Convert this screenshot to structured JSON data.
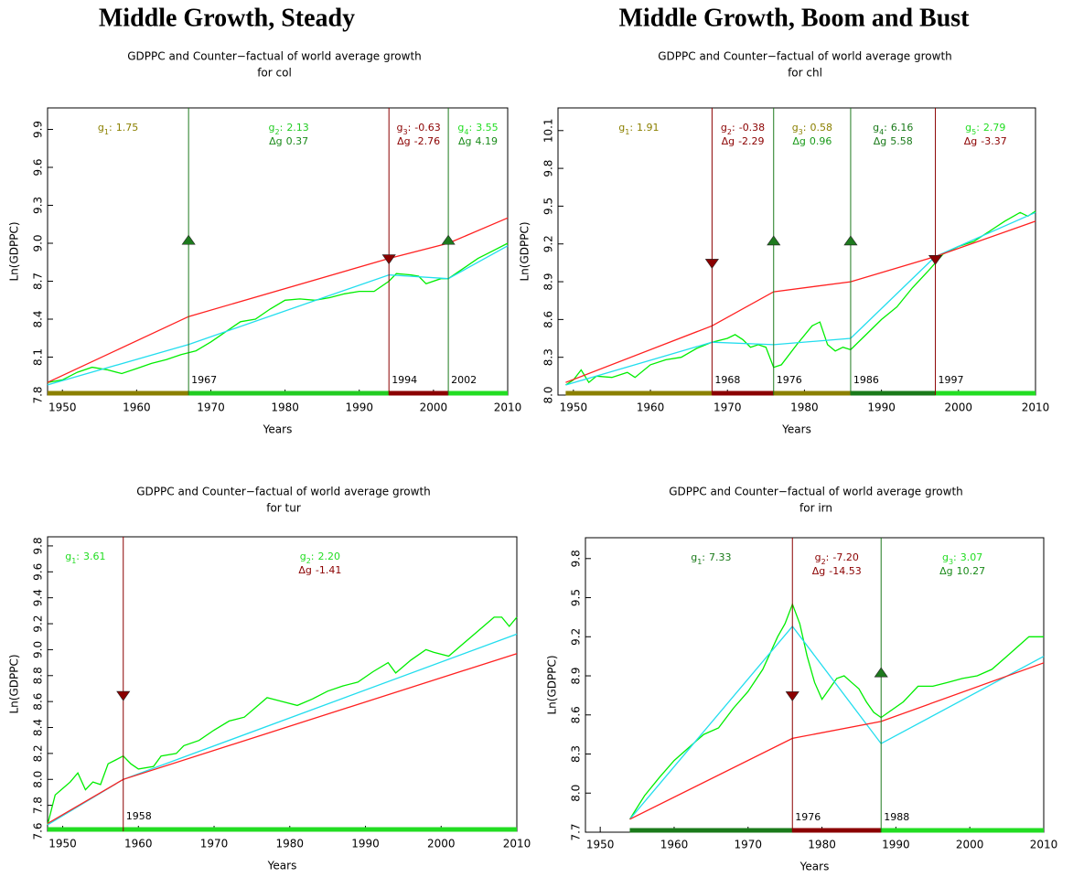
{
  "headings": [
    "Middle Growth, Steady",
    "Middle Growth, Boom and Bust"
  ],
  "chart_data": [
    {
      "type": "line",
      "title": "GDPPC and Counter−factual of world average growth",
      "subtitle": "for col",
      "xlabel": "Years",
      "ylabel": "Ln(GDPPC)",
      "xlim": [
        1948,
        2010
      ],
      "ylim": [
        7.8,
        10.07
      ],
      "xticks": [
        1950,
        1960,
        1970,
        1980,
        1990,
        2000,
        2010
      ],
      "yticks": [
        7.8,
        8.1,
        8.4,
        8.7,
        {
          "value": 9,
          "label": "9.0"
        },
        9.3,
        9.6,
        9.9
      ],
      "series": [
        {
          "color": "#00ee00",
          "x": [
            1948,
            1950,
            1952,
            1954,
            1956,
            1958,
            1960,
            1962,
            1964,
            1966,
            1968,
            1970,
            1972,
            1974,
            1976,
            1978,
            1980,
            1982,
            1984,
            1986,
            1988,
            1990,
            1992,
            1994,
            1995,
            1997,
            1998,
            1999,
            2001,
            2002,
            2004,
            2006,
            2008,
            2010
          ],
          "values": [
            7.9,
            7.92,
            7.98,
            8.02,
            8.0,
            7.97,
            8.01,
            8.05,
            8.08,
            8.12,
            8.15,
            8.22,
            8.3,
            8.38,
            8.4,
            8.48,
            8.55,
            8.56,
            8.55,
            8.57,
            8.6,
            8.62,
            8.62,
            8.7,
            8.76,
            8.75,
            8.74,
            8.68,
            8.72,
            8.72,
            8.8,
            8.88,
            8.94,
            9.0
          ]
        },
        {
          "color": "#22ddee",
          "x": [
            1948,
            1967,
            1994,
            2002,
            2010
          ],
          "values": [
            7.88,
            8.2,
            8.75,
            8.72,
            8.98
          ]
        },
        {
          "color": "#ff2020",
          "x": [
            1948,
            1967,
            1994,
            2002,
            2010
          ],
          "values": [
            7.9,
            8.42,
            8.88,
            9.0,
            9.2
          ]
        }
      ],
      "breaks": [
        {
          "x": 1967,
          "direction": "up",
          "color": "#1e7a1e",
          "level": 9.02
        },
        {
          "x": 1994,
          "direction": "down",
          "color": "#8b0000",
          "level": 8.88
        },
        {
          "x": 2002,
          "direction": "up",
          "color": "#1e7a1e",
          "level": 9.02
        }
      ],
      "regime_symbol": "g",
      "separator": ":",
      "delta_symbol": "Δg",
      "regimes": [
        {
          "index": 1,
          "g": 1.75,
          "color": "#8b8000"
        },
        {
          "index": 2,
          "g": 2.13,
          "dg": 0.37,
          "color": "#22cc22",
          "delta_color": "#1a8a1a"
        },
        {
          "index": 3,
          "g": -0.63,
          "dg": -2.76,
          "color": "#8b0000",
          "delta_color": "#8b0000"
        },
        {
          "index": 4,
          "g": 3.55,
          "dg": 4.19,
          "color": "#22dd22",
          "delta_color": "#1a8a1a"
        }
      ]
    },
    {
      "type": "line",
      "title": "GDPPC and Counter−factual of world average growth",
      "subtitle": "for chl",
      "xlabel": "Years",
      "ylabel": "Ln(GDPPC)",
      "xlim": [
        1948,
        2010
      ],
      "ylim": [
        8.0,
        10.28
      ],
      "xticks": [
        1950,
        1960,
        1970,
        1980,
        1990,
        2000,
        2010
      ],
      "yticks": [
        {
          "value": 8,
          "label": "8.0"
        },
        8.3,
        8.6,
        8.9,
        9.2,
        9.5,
        9.8,
        10.1
      ],
      "series": [
        {
          "color": "#00ee00",
          "x": [
            1949,
            1950,
            1951,
            1952,
            1953,
            1955,
            1957,
            1958,
            1960,
            1962,
            1964,
            1966,
            1968,
            1970,
            1971,
            1972,
            1973,
            1974,
            1975,
            1976,
            1977,
            1979,
            1981,
            1982,
            1983,
            1984,
            1985,
            1986,
            1988,
            1990,
            1992,
            1994,
            1996,
            1998,
            2000,
            2002,
            2004,
            2006,
            2008,
            2009,
            2010
          ],
          "values": [
            8.08,
            8.12,
            8.2,
            8.1,
            8.15,
            8.14,
            8.18,
            8.14,
            8.24,
            8.28,
            8.3,
            8.37,
            8.42,
            8.45,
            8.48,
            8.44,
            8.38,
            8.4,
            8.38,
            8.22,
            8.24,
            8.4,
            8.55,
            8.58,
            8.4,
            8.35,
            8.38,
            8.36,
            8.48,
            8.6,
            8.7,
            8.85,
            8.98,
            9.12,
            9.18,
            9.22,
            9.3,
            9.38,
            9.45,
            9.42,
            9.46
          ]
        },
        {
          "color": "#22ddee",
          "x": [
            1949,
            1968,
            1976,
            1986,
            1997,
            2010
          ],
          "values": [
            8.08,
            8.42,
            8.4,
            8.45,
            9.1,
            9.45
          ]
        },
        {
          "color": "#ff2020",
          "x": [
            1949,
            1968,
            1976,
            1986,
            1997,
            2010
          ],
          "values": [
            8.1,
            8.55,
            8.82,
            8.9,
            9.1,
            9.38
          ]
        }
      ],
      "breaks": [
        {
          "x": 1968,
          "direction": "down",
          "color": "#8b0000",
          "level": 9.05
        },
        {
          "x": 1976,
          "direction": "up",
          "color": "#1e7a1e",
          "level": 9.22
        },
        {
          "x": 1986,
          "direction": "up",
          "color": "#1e7a1e",
          "level": 9.22
        },
        {
          "x": 1997,
          "direction": "down",
          "color": "#8b0000",
          "level": 9.08
        }
      ],
      "regime_symbol": "g",
      "separator": ":",
      "delta_symbol": "Δg",
      "regimes": [
        {
          "index": 1,
          "g": 1.91,
          "color": "#8b8000"
        },
        {
          "index": 2,
          "g": -0.38,
          "dg": -2.29,
          "color": "#8b0000",
          "delta_color": "#8b0000"
        },
        {
          "index": 3,
          "g": 0.58,
          "dg": 0.96,
          "color": "#8b8000",
          "delta_color": "#1a9a1a"
        },
        {
          "index": 4,
          "g": 6.16,
          "dg": 5.58,
          "color": "#1a7a1a",
          "delta_color": "#1a7a1a"
        },
        {
          "index": 5,
          "g": 2.79,
          "dg": -3.37,
          "color": "#22dd22",
          "delta_color": "#8b0000"
        }
      ]
    },
    {
      "type": "line",
      "title": "GDPPC and Counter−factual of world average growth",
      "subtitle": "for tur",
      "xlabel": "Years",
      "ylabel": "Ln(GDPPC)",
      "xlim": [
        1948,
        2010
      ],
      "ylim": [
        7.6,
        9.87
      ],
      "xticks": [
        1950,
        1960,
        1970,
        1980,
        1990,
        2000,
        2010
      ],
      "yticks": [
        7.6,
        7.8,
        {
          "value": 8,
          "label": "8.0"
        },
        8.2,
        8.4,
        8.6,
        8.8,
        {
          "value": 9,
          "label": "9.0"
        },
        9.2,
        9.4,
        9.6,
        9.8
      ],
      "series": [
        {
          "color": "#00ee00",
          "x": [
            1948,
            1949,
            1950,
            1951,
            1952,
            1953,
            1954,
            1955,
            1956,
            1957,
            1958,
            1959,
            1960,
            1962,
            1963,
            1965,
            1966,
            1968,
            1970,
            1972,
            1974,
            1976,
            1977,
            1979,
            1981,
            1983,
            1985,
            1987,
            1989,
            1991,
            1993,
            1994,
            1996,
            1998,
            1999,
            2001,
            2003,
            2005,
            2007,
            2008,
            2009,
            2010
          ],
          "values": [
            7.65,
            7.88,
            7.93,
            7.98,
            8.05,
            7.92,
            7.98,
            7.96,
            8.12,
            8.15,
            8.18,
            8.12,
            8.08,
            8.1,
            8.18,
            8.2,
            8.26,
            8.3,
            8.38,
            8.45,
            8.48,
            8.58,
            8.63,
            8.6,
            8.57,
            8.62,
            8.68,
            8.72,
            8.75,
            8.83,
            8.9,
            8.82,
            8.92,
            9.0,
            8.98,
            8.95,
            9.05,
            9.15,
            9.25,
            9.25,
            9.18,
            9.25
          ]
        },
        {
          "color": "#22ddee",
          "x": [
            1948,
            1958,
            2010
          ],
          "values": [
            7.65,
            8.0,
            9.12
          ]
        },
        {
          "color": "#ff2020",
          "x": [
            1948,
            1958,
            2010
          ],
          "values": [
            7.66,
            8.0,
            8.97
          ]
        }
      ],
      "breaks": [
        {
          "x": 1958,
          "direction": "down",
          "color": "#8b0000",
          "level": 8.65
        }
      ],
      "regime_symbol": "g",
      "separator": ":",
      "delta_symbol": "Δg",
      "regimes": [
        {
          "index": 1,
          "g": 3.61,
          "color": "#22dd22"
        },
        {
          "index": 2,
          "g": {
            "value": 2.2,
            "label": "2.20"
          },
          "dg": -1.41,
          "color": "#22dd22",
          "delta_color": "#8b0000"
        }
      ]
    },
    {
      "type": "line",
      "title": "GDPPC and Counter−factual of world average growth",
      "subtitle": "for irn",
      "xlabel": "Years",
      "ylabel": "Ln(GDPPC)",
      "xlim": [
        1948,
        2010
      ],
      "ylim": [
        7.7,
        9.96
      ],
      "xticks": [
        1950,
        1960,
        1970,
        1980,
        1990,
        2000,
        2010
      ],
      "yticks": [
        7.7,
        {
          "value": 8,
          "label": "8.0"
        },
        8.3,
        8.6,
        8.9,
        9.2,
        9.5,
        9.8
      ],
      "series": [
        {
          "color": "#00ee00",
          "x": [
            1954,
            1956,
            1958,
            1960,
            1962,
            1964,
            1966,
            1968,
            1970,
            1972,
            1974,
            1975,
            1976,
            1977,
            1978,
            1979,
            1980,
            1981,
            1982,
            1983,
            1984,
            1985,
            1986,
            1987,
            1988,
            1989,
            1991,
            1993,
            1995,
            1997,
            1999,
            2001,
            2003,
            2005,
            2007,
            2008,
            2010
          ],
          "values": [
            7.8,
            7.98,
            8.12,
            8.25,
            8.35,
            8.45,
            8.5,
            8.65,
            8.78,
            8.95,
            9.2,
            9.3,
            9.45,
            9.3,
            9.05,
            8.85,
            8.72,
            8.8,
            8.88,
            8.9,
            8.85,
            8.8,
            8.7,
            8.62,
            8.58,
            8.62,
            8.7,
            8.82,
            8.82,
            8.85,
            8.88,
            8.9,
            8.95,
            9.05,
            9.15,
            9.2,
            9.2
          ]
        },
        {
          "color": "#22ddee",
          "x": [
            1954,
            1976,
            1988,
            2010
          ],
          "values": [
            7.8,
            9.28,
            8.38,
            9.05
          ]
        },
        {
          "color": "#ff2020",
          "x": [
            1954,
            1976,
            1988,
            2010
          ],
          "values": [
            7.8,
            8.42,
            8.55,
            9.0
          ]
        }
      ],
      "breaks": [
        {
          "x": 1976,
          "direction": "down",
          "color": "#8b0000",
          "level": 8.75
        },
        {
          "x": 1988,
          "direction": "up",
          "color": "#1e7a1e",
          "level": 8.92
        }
      ],
      "regime_symbol": "g",
      "separator": ":",
      "delta_symbol": "Δg",
      "regimes": [
        {
          "index": 1,
          "g": 7.33,
          "color": "#1a7a1a"
        },
        {
          "index": 2,
          "g": {
            "value": -7.2,
            "label": "-7.20"
          },
          "dg": -14.53,
          "color": "#8b0000",
          "delta_color": "#8b0000"
        },
        {
          "index": 3,
          "g": 3.07,
          "dg": 10.27,
          "color": "#22dd22",
          "delta_color": "#1a8a1a"
        }
      ]
    }
  ]
}
